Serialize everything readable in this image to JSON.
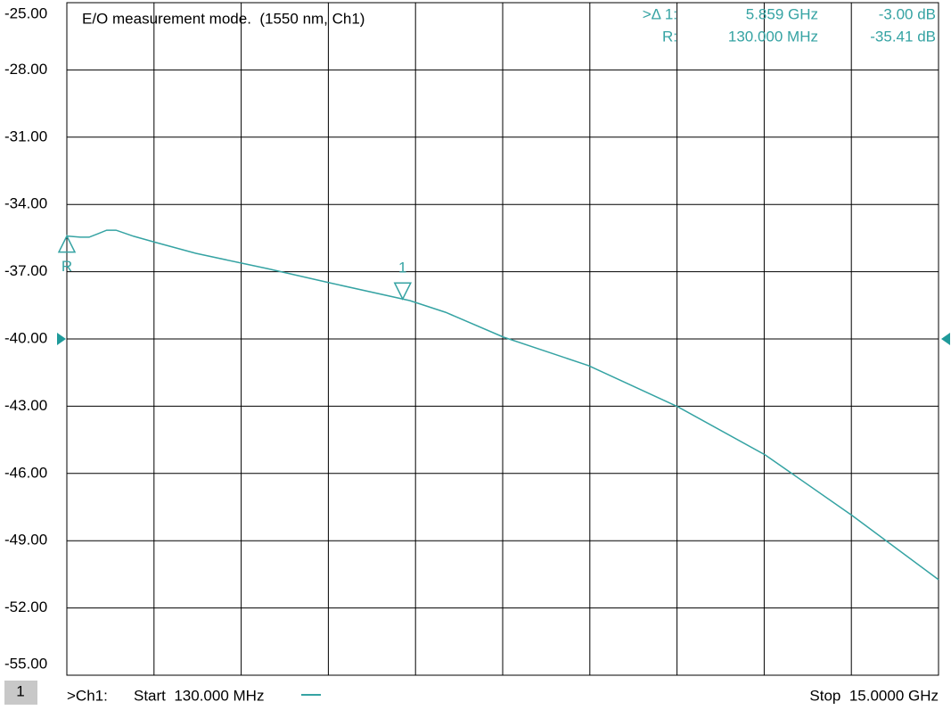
{
  "chart_data": {
    "type": "line",
    "title": "E/O measurement mode.  (1550 nm, Ch1)",
    "x": [
      0.13,
      0.36,
      0.51,
      0.66,
      0.81,
      0.97,
      1.27,
      1.65,
      2.33,
      3.11,
      3.55,
      4.6,
      5.98,
      6.59,
      7.58,
      9.03,
      10.55,
      12.04,
      13.53,
      15.0
    ],
    "series": [
      {
        "name": ">Ch1:",
        "color": "#35a3a3",
        "values": [
          -35.41,
          -35.46,
          -35.46,
          -35.31,
          -35.15,
          -35.15,
          -35.42,
          -35.7,
          -36.18,
          -36.62,
          -36.86,
          -37.49,
          -38.29,
          -38.81,
          -39.92,
          -41.19,
          -43.02,
          -45.17,
          -47.88,
          -50.74
        ]
      }
    ],
    "xlim": [
      0.13,
      15.0
    ],
    "ylim": [
      -55,
      -25
    ],
    "yticks": [
      {
        "value": -25,
        "label": "-25.00"
      },
      {
        "value": -28,
        "label": "-28.00"
      },
      {
        "value": -31,
        "label": "-31.00"
      },
      {
        "value": -34,
        "label": "-34.00"
      },
      {
        "value": -37,
        "label": "-37.00"
      },
      {
        "value": -40,
        "label": "-40.00"
      },
      {
        "value": -43,
        "label": "-43.00"
      },
      {
        "value": -46,
        "label": "-46.00"
      },
      {
        "value": -49,
        "label": "-49.00"
      },
      {
        "value": -52,
        "label": "-52.00"
      },
      {
        "value": -55,
        "label": "-55.00"
      }
    ],
    "grid": true,
    "reference_level": -40,
    "markers": [
      {
        "label": "R",
        "x": 0.13
      },
      {
        "label": "1",
        "x": 5.859
      }
    ],
    "readout": [
      [
        ">Δ 1:",
        "5.859 GHz",
        "-3.00 dB"
      ],
      [
        "R:",
        "130.000 MHz",
        "-35.41 dB"
      ]
    ],
    "channel": "1",
    "start": "Start  130.000 MHz",
    "stop": "Stop  15.0000 GHz"
  }
}
